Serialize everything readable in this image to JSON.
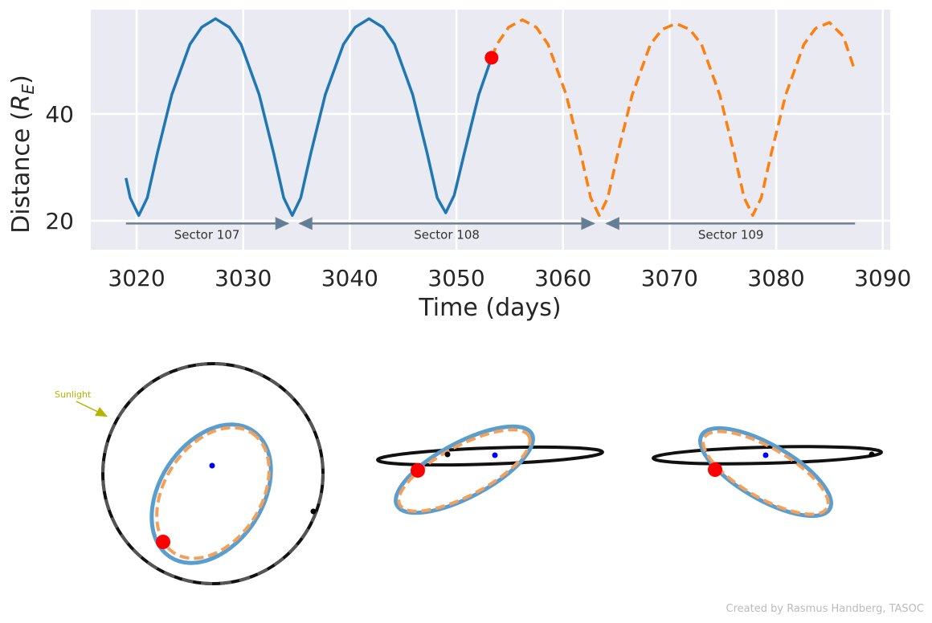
{
  "chart_data": {
    "type": "line",
    "xlabel": "Time (days)",
    "ylabel_parts": [
      "Distance (",
      "R",
      "E",
      ")"
    ],
    "xlim": [
      3015.7,
      3090.7
    ],
    "ylim": [
      14.6,
      59.5
    ],
    "xticks": [
      3020,
      3030,
      3040,
      3050,
      3060,
      3070,
      3080,
      3090
    ],
    "yticks": [
      20,
      40
    ],
    "grid": true,
    "series": [
      {
        "color": "#1f77b4",
        "dash": false,
        "x": [
          3019.0,
          3019.4,
          3020.2,
          3021.0,
          3021.95,
          3023.3,
          3025.0,
          3026.1,
          3027.4,
          3028.7,
          3029.8,
          3031.5,
          3032.85,
          3033.8,
          3034.6,
          3035.4,
          3036.35,
          3037.7,
          3039.4,
          3040.5,
          3041.8,
          3043.1,
          3044.2,
          3045.9,
          3047.25,
          3048.2,
          3049.0,
          3049.8,
          3050.75,
          3052.1,
          3053.3
        ],
        "values": [
          28.0,
          24.3,
          21.0,
          24.3,
          32.7,
          43.6,
          53.0,
          56.2,
          57.8,
          56.2,
          53.0,
          43.6,
          32.7,
          24.3,
          21.0,
          24.3,
          32.7,
          43.6,
          53.0,
          56.2,
          57.8,
          56.2,
          53.0,
          43.6,
          32.7,
          24.3,
          21.5,
          24.8,
          32.7,
          43.6,
          50.5
        ]
      },
      {
        "color": "#ff7f0e",
        "dash": true,
        "x": [
          3053.3,
          3053.8,
          3054.9,
          3056.2,
          3057.5,
          3058.6,
          3060.3,
          3061.65,
          3062.6,
          3063.4,
          3064.2,
          3065.15,
          3066.5,
          3068.2,
          3069.3,
          3070.6,
          3071.9,
          3073.0,
          3074.7,
          3076.05,
          3077.0,
          3077.8,
          3078.6,
          3079.55,
          3080.9,
          3082.6,
          3083.7,
          3085.0,
          3086.3,
          3087.4
        ],
        "values": [
          50.5,
          53.0,
          56.2,
          57.6,
          56.2,
          53.0,
          43.6,
          32.7,
          24.3,
          21.0,
          24.3,
          32.7,
          43.6,
          53.0,
          55.8,
          56.9,
          55.8,
          53.0,
          43.6,
          32.7,
          24.3,
          21.0,
          24.3,
          32.7,
          43.6,
          53.0,
          56.0,
          57.1,
          54.5,
          48.0
        ]
      }
    ],
    "marker": {
      "x": 3053.3,
      "y": 50.5,
      "color": "#ff0000"
    },
    "sectors": [
      {
        "label": "Sector 107",
        "start": 3019.0,
        "end": 3034.2,
        "y": 19.5
      },
      {
        "label": "Sector 108",
        "start": 3035.3,
        "end": 3062.9,
        "y": 19.5
      },
      {
        "label": "Sector 109",
        "start": 3064.1,
        "end": 3087.4,
        "y": 19.5
      }
    ],
    "sunlight_label": "Sunlight",
    "credit": "Created by Rasmus Handberg, TASOC"
  }
}
